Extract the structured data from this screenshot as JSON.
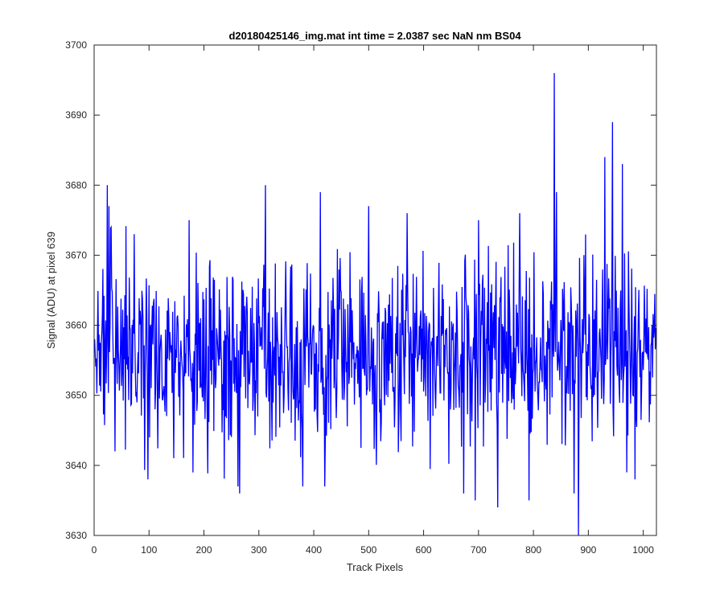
{
  "chart_data": {
    "type": "line",
    "title": "d20180425146_img.mat int time = 2.0387 sec  NaN nm BS04",
    "xlabel": "Track Pixels",
    "ylabel": "Signal (ADU) at pixel 639",
    "xlim": [
      0,
      1024
    ],
    "ylim": [
      3630,
      3700
    ],
    "xticks": [
      0,
      100,
      200,
      300,
      400,
      500,
      600,
      700,
      800,
      900,
      1000
    ],
    "yticks": [
      3630,
      3640,
      3650,
      3660,
      3670,
      3680,
      3690,
      3700
    ],
    "xtick_labels": [
      "0",
      "100",
      "200",
      "300",
      "400",
      "500",
      "600",
      "700",
      "800",
      "900",
      "1000"
    ],
    "ytick_labels": [
      "3630",
      "3640",
      "3650",
      "3660",
      "3670",
      "3680",
      "3690",
      "3700"
    ],
    "grid": false,
    "series": [
      {
        "color": "#0000ff",
        "x_start": 1,
        "x_step": 1,
        "n_points": 1024,
        "approx_mean": 3656,
        "approx_min": 3630,
        "approx_max": 3696,
        "notable_points": [
          {
            "x": 1,
            "y": 3658
          },
          {
            "x": 24,
            "y": 3680
          },
          {
            "x": 27,
            "y": 3677
          },
          {
            "x": 31,
            "y": 3674
          },
          {
            "x": 38,
            "y": 3642
          },
          {
            "x": 73,
            "y": 3673
          },
          {
            "x": 98,
            "y": 3638
          },
          {
            "x": 173,
            "y": 3675
          },
          {
            "x": 180,
            "y": 3639
          },
          {
            "x": 262,
            "y": 3637
          },
          {
            "x": 265,
            "y": 3636
          },
          {
            "x": 312,
            "y": 3680
          },
          {
            "x": 380,
            "y": 3637
          },
          {
            "x": 412,
            "y": 3679
          },
          {
            "x": 420,
            "y": 3637
          },
          {
            "x": 500,
            "y": 3677
          },
          {
            "x": 570,
            "y": 3676
          },
          {
            "x": 673,
            "y": 3636
          },
          {
            "x": 694,
            "y": 3635
          },
          {
            "x": 735,
            "y": 3634
          },
          {
            "x": 775,
            "y": 3676
          },
          {
            "x": 792,
            "y": 3635
          },
          {
            "x": 838,
            "y": 3696
          },
          {
            "x": 842,
            "y": 3679
          },
          {
            "x": 874,
            "y": 3636
          },
          {
            "x": 882,
            "y": 3630
          },
          {
            "x": 930,
            "y": 3684
          },
          {
            "x": 944,
            "y": 3689
          },
          {
            "x": 962,
            "y": 3683
          },
          {
            "x": 985,
            "y": 3638
          },
          {
            "x": 1024,
            "y": 3659
          }
        ]
      }
    ]
  }
}
